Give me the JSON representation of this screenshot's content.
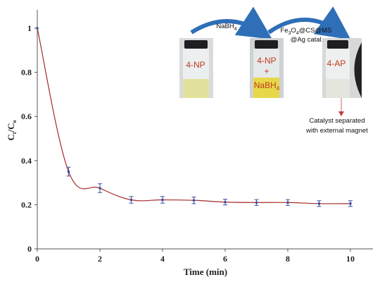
{
  "chart_data": {
    "type": "line",
    "xlabel": "Time (min)",
    "ylabel_main": "C",
    "ylabel_sub1": "t",
    "ylabel_mid": "/C",
    "ylabel_sub2": "o",
    "xlim": [
      0,
      10
    ],
    "ylim": [
      0,
      1
    ],
    "x_ticks": [
      "0",
      "2",
      "4",
      "6",
      "8",
      "10"
    ],
    "y_ticks": [
      "0",
      "0.2",
      "0.4",
      "0.6",
      "0.8",
      "1"
    ],
    "x": [
      0,
      1,
      2,
      3,
      4,
      5,
      6,
      7,
      8,
      9,
      10
    ],
    "y": [
      1.0,
      0.35,
      0.275,
      0.222,
      0.222,
      0.22,
      0.212,
      0.21,
      0.21,
      0.205,
      0.205
    ],
    "err": [
      0,
      0.02,
      0.02,
      0.015,
      0.015,
      0.015,
      0.013,
      0.013,
      0.013,
      0.013,
      0.013
    ],
    "line_color": "#a52a2a",
    "marker_color": "#3d4fa0",
    "grid": false
  },
  "inset": {
    "arrow1_label_main": "NaBH",
    "arrow1_label_sub": "4",
    "arrow2_line1_parts": [
      "Fe",
      "3",
      "O",
      "4",
      "@CS@MS"
    ],
    "arrow2_line2": "@Ag catal.",
    "vial1_label": "4-NP",
    "vial2_label_top": "4-NP",
    "vial2_label_plus": "+",
    "vial2_label_bottom_main": "NaBH",
    "vial2_label_bottom_sub": "4",
    "vial3_label": "4-AP",
    "annotation_line1": "Catalyst  separated",
    "annotation_line2": "with external magnet",
    "arrow_color": "#2f6fb8"
  }
}
